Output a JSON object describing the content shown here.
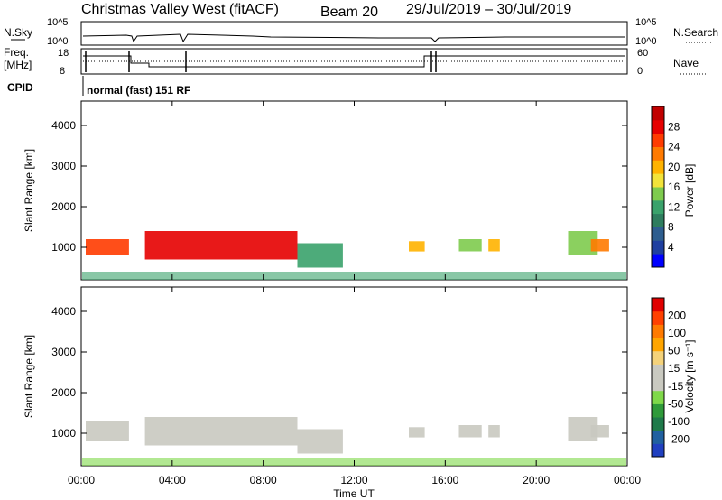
{
  "header": {
    "station": "Christmas Valley West (fitACF)",
    "beam": "Beam 20",
    "date_range": "29/Jul/2019 – 30/Jul/2019"
  },
  "strip_panels": {
    "nsky_label": "N.Sky",
    "nsky_ticks": [
      "10^5",
      "10^0"
    ],
    "nsearch_label": "N.Search",
    "nsearch_ticks": [
      "10^5",
      "10^0"
    ],
    "freq_label": "Freq.",
    "freq_unit": "[MHz]",
    "freq_ticks": [
      "18",
      "8"
    ],
    "nave_label": "Nave",
    "nave_ticks": [
      "60",
      "0"
    ],
    "cpid_label": "CPID",
    "cpid_text": "normal (fast) 151 RF"
  },
  "colorbars": {
    "power": {
      "label": "Power [dB]",
      "ticks": [
        "28",
        "24",
        "20",
        "16",
        "12",
        "8",
        "4"
      ],
      "colors": [
        "#0000ff",
        "#1f3fa0",
        "#2e5e8f",
        "#2e7d5e",
        "#3aa26b",
        "#7ecb4e",
        "#f2e33a",
        "#ffb300",
        "#ff7a00",
        "#ff3b00",
        "#e60000",
        "#c00000"
      ]
    },
    "velocity": {
      "label": "Velocity [m s⁻¹]",
      "ticks": [
        "200",
        "100",
        "50",
        "15",
        "-15",
        "-50",
        "-100",
        "-200"
      ],
      "colors": [
        "#2040c0",
        "#2060a0",
        "#1f7a4a",
        "#2f9a3a",
        "#7fd84a",
        "#c9c9c0",
        "#c9c9c0",
        "#f4d27a",
        "#ffa500",
        "#ff7a00",
        "#ff4000",
        "#e00000"
      ]
    }
  },
  "axes": {
    "y_label": "Slant Range [km]",
    "y_ticks": [
      "4000",
      "3000",
      "2000",
      "1000"
    ],
    "x_label": "Time UT",
    "x_ticks": [
      "00:00",
      "04:00",
      "08:00",
      "12:00",
      "16:00",
      "20:00",
      "00:00"
    ]
  },
  "chart_data": [
    {
      "type": "heatmap",
      "title": "",
      "xlabel": "Time UT",
      "ylabel": "Slant Range [km]",
      "xlim": [
        0,
        24
      ],
      "ylim": [
        200,
        4600
      ],
      "colorbar": "Power [dB]",
      "colorbar_range": [
        0,
        30
      ],
      "echo_regions": [
        {
          "t": [
            0.2,
            2.1
          ],
          "range": [
            800,
            1200
          ],
          "power": 24
        },
        {
          "t": [
            2.8,
            9.5
          ],
          "range": [
            700,
            1400
          ],
          "power": 26
        },
        {
          "t": [
            9.5,
            11.5
          ],
          "range": [
            500,
            1100
          ],
          "power": 12
        },
        {
          "t": [
            14.4,
            15.1
          ],
          "range": [
            900,
            1150
          ],
          "power": 20
        },
        {
          "t": [
            16.6,
            17.6
          ],
          "range": [
            900,
            1200
          ],
          "power": 14
        },
        {
          "t": [
            17.9,
            18.4
          ],
          "range": [
            900,
            1200
          ],
          "power": 18
        },
        {
          "t": [
            21.4,
            22.7
          ],
          "range": [
            800,
            1400
          ],
          "power": 14
        },
        {
          "t": [
            22.4,
            23.2
          ],
          "range": [
            900,
            1200
          ],
          "power": 22
        }
      ]
    },
    {
      "type": "heatmap",
      "title": "",
      "xlabel": "Time UT",
      "ylabel": "Slant Range [km]",
      "xlim": [
        0,
        24
      ],
      "ylim": [
        200,
        4600
      ],
      "colorbar": "Velocity [m s⁻¹]",
      "colorbar_range": [
        -250,
        250
      ],
      "echo_regions": [
        {
          "t": [
            0.2,
            2.1
          ],
          "range": [
            800,
            1300
          ],
          "velocity": 0
        },
        {
          "t": [
            2.8,
            9.5
          ],
          "range": [
            700,
            1400
          ],
          "velocity": -40
        },
        {
          "t": [
            9.5,
            11.5
          ],
          "range": [
            500,
            1100
          ],
          "velocity": 0
        },
        {
          "t": [
            14.4,
            15.1
          ],
          "range": [
            900,
            1150
          ],
          "velocity": 0
        },
        {
          "t": [
            16.6,
            17.6
          ],
          "range": [
            900,
            1200
          ],
          "velocity": 0
        },
        {
          "t": [
            17.9,
            18.4
          ],
          "range": [
            900,
            1200
          ],
          "velocity": 0
        },
        {
          "t": [
            21.4,
            22.7
          ],
          "range": [
            800,
            1400
          ],
          "velocity": 0
        },
        {
          "t": [
            22.4,
            23.2
          ],
          "range": [
            900,
            1200
          ],
          "velocity": 0
        }
      ]
    }
  ]
}
